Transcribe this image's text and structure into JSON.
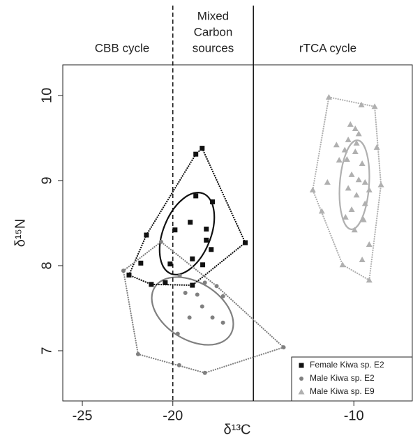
{
  "chart_data": {
    "type": "scatter",
    "xlabel": "δ¹³C",
    "ylabel": "δ¹⁵N",
    "xlim": [
      -26.08,
      -6.77
    ],
    "ylim": [
      6.41,
      10.36
    ],
    "xticks": [
      -25,
      -20,
      -10
    ],
    "yticks": [
      7,
      8,
      9,
      10
    ],
    "vlines": [
      {
        "x": -20,
        "style": "dashed"
      },
      {
        "x": -15.55,
        "style": "solid"
      }
    ],
    "regions": [
      [
        "CBB cycle"
      ],
      [
        "Mixed",
        "Carbon",
        "sources"
      ],
      [
        "rTCA cycle"
      ]
    ],
    "legend": "lower right",
    "series": [
      {
        "name": "Female Kiwa sp. E2",
        "color": "#111111",
        "marker": "square",
        "x": [
          -22.42,
          -21.77,
          -21.46,
          -21.19,
          -20.42,
          -20.15,
          -19.88,
          -19.04,
          -18.92,
          -18.92,
          -18.73,
          -18.38,
          -18.73,
          -18.15,
          -17.81,
          -18.15,
          -17.88,
          -18.35,
          -16.0
        ],
        "values": [
          7.89,
          8.03,
          8.36,
          7.78,
          7.8,
          8.02,
          8.42,
          8.51,
          7.77,
          8.08,
          9.31,
          9.38,
          8.82,
          8.43,
          8.75,
          8.3,
          8.19,
          8.01,
          8.27
        ]
      },
      {
        "name": "Male Kiwa sp. E2",
        "color": "#808080",
        "marker": "circle",
        "x": [
          -22.73,
          -21.92,
          -20.65,
          -19.65,
          -19.73,
          -19.31,
          -19.08,
          -18.65,
          -18.23,
          -17.81,
          -17.23,
          -17.23,
          -17.58,
          -18.38,
          -19.62,
          -13.88,
          -18.23
        ],
        "values": [
          7.94,
          6.96,
          8.28,
          6.83,
          7.2,
          7.68,
          7.39,
          7.66,
          7.8,
          7.39,
          7.33,
          7.64,
          7.76,
          7.52,
          7.88,
          7.04,
          6.74
        ]
      },
      {
        "name": "Male Kiwa sp. E9",
        "color": "#b0b0b0",
        "marker": "triangle",
        "x": [
          -11.38,
          -8.85,
          -8.5,
          -12.27,
          -11.77,
          -10.62,
          -9.15,
          -9.58,
          -10.19,
          -9.92,
          -9.73,
          -10.31,
          -9.85,
          -10.96,
          -10.5,
          -9.92,
          -8.73,
          -10.38,
          -10.81,
          -9.54,
          -10.12,
          -11.46,
          -9.73,
          -9.38,
          -10.31,
          -9.15,
          -9.85,
          -9.38,
          -10.12,
          -10.46,
          -9.46,
          -9.96,
          -9.15,
          -9.54
        ],
        "values": [
          9.98,
          9.87,
          8.95,
          8.89,
          8.64,
          8.01,
          7.83,
          9.89,
          9.66,
          9.61,
          9.55,
          9.48,
          9.44,
          9.42,
          9.36,
          9.34,
          9.39,
          9.25,
          9.24,
          9.2,
          9.07,
          8.98,
          9.01,
          8.98,
          8.91,
          8.89,
          8.83,
          8.73,
          8.66,
          8.57,
          8.54,
          8.42,
          8.25,
          8.07
        ]
      }
    ]
  }
}
